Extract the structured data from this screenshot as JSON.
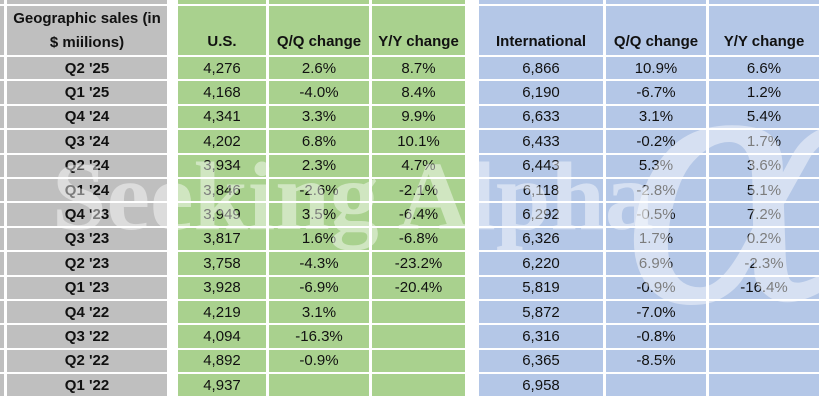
{
  "table": {
    "title_line1": "Geographic sales (in",
    "title_line2": "$ miilions)",
    "columns": [
      "U.S.",
      "Q/Q change",
      "Y/Y change",
      "International",
      "Q/Q change",
      "Y/Y change"
    ],
    "rows": [
      {
        "label": "Q2 '25",
        "us": "4,276",
        "us_qq": "2.6%",
        "us_yy": "8.7%",
        "intl": "6,866",
        "intl_qq": "10.9%",
        "intl_yy": "6.6%"
      },
      {
        "label": "Q1 '25",
        "us": "4,168",
        "us_qq": "-4.0%",
        "us_yy": "8.4%",
        "intl": "6,190",
        "intl_qq": "-6.7%",
        "intl_yy": "1.2%"
      },
      {
        "label": "Q4 '24",
        "us": "4,341",
        "us_qq": "3.3%",
        "us_yy": "9.9%",
        "intl": "6,633",
        "intl_qq": "3.1%",
        "intl_yy": "5.4%"
      },
      {
        "label": "Q3 '24",
        "us": "4,202",
        "us_qq": "6.8%",
        "us_yy": "10.1%",
        "intl": "6,433",
        "intl_qq": "-0.2%",
        "intl_yy": "1.7%"
      },
      {
        "label": "Q2 '24",
        "us": "3,934",
        "us_qq": "2.3%",
        "us_yy": "4.7%",
        "intl": "6,443",
        "intl_qq": "5.3%",
        "intl_yy": "3.6%"
      },
      {
        "label": "Q1 '24",
        "us": "3,846",
        "us_qq": "-2.6%",
        "us_yy": "-2.1%",
        "intl": "6,118",
        "intl_qq": "-2.8%",
        "intl_yy": "5.1%"
      },
      {
        "label": "Q4 '23",
        "us": "3,949",
        "us_qq": "3.5%",
        "us_yy": "-6.4%",
        "intl": "6,292",
        "intl_qq": "-0.5%",
        "intl_yy": "7.2%"
      },
      {
        "label": "Q3 '23",
        "us": "3,817",
        "us_qq": "1.6%",
        "us_yy": "-6.8%",
        "intl": "6,326",
        "intl_qq": "1.7%",
        "intl_yy": "0.2%"
      },
      {
        "label": "Q2 '23",
        "us": "3,758",
        "us_qq": "-4.3%",
        "us_yy": "-23.2%",
        "intl": "6,220",
        "intl_qq": "6.9%",
        "intl_yy": "-2.3%"
      },
      {
        "label": "Q1 '23",
        "us": "3,928",
        "us_qq": "-6.9%",
        "us_yy": "-20.4%",
        "intl": "5,819",
        "intl_qq": "-0.9%",
        "intl_yy": "-16.4%"
      },
      {
        "label": "Q4 '22",
        "us": "4,219",
        "us_qq": "3.1%",
        "us_yy": "",
        "intl": "5,872",
        "intl_qq": "-7.0%",
        "intl_yy": ""
      },
      {
        "label": "Q3 '22",
        "us": "4,094",
        "us_qq": "-16.3%",
        "us_yy": "",
        "intl": "6,316",
        "intl_qq": "-0.8%",
        "intl_yy": ""
      },
      {
        "label": "Q2 '22",
        "us": "4,892",
        "us_qq": "-0.9%",
        "us_yy": "",
        "intl": "6,365",
        "intl_qq": "-8.5%",
        "intl_yy": ""
      },
      {
        "label": "Q1 '22",
        "us": "4,937",
        "us_qq": "",
        "us_yy": "",
        "intl": "6,958",
        "intl_qq": "",
        "intl_yy": ""
      }
    ]
  },
  "watermark": {
    "text": "Seeking Alpha",
    "alpha_symbol": "α"
  },
  "colors": {
    "label_fill": "#bfbfbf",
    "us_fill": "#a9d18e",
    "intl_fill": "#b4c7e7",
    "gridline": "#ffffff",
    "text": "#111111"
  },
  "chart_data": {
    "type": "table",
    "title": "Geographic sales (in $ miilions)",
    "categories": [
      "Q2 '25",
      "Q1 '25",
      "Q4 '24",
      "Q3 '24",
      "Q2 '24",
      "Q1 '24",
      "Q4 '23",
      "Q3 '23",
      "Q2 '23",
      "Q1 '23",
      "Q4 '22",
      "Q3 '22",
      "Q2 '22",
      "Q1 '22"
    ],
    "series": [
      {
        "name": "U.S.",
        "values": [
          4276,
          4168,
          4341,
          4202,
          3934,
          3846,
          3949,
          3817,
          3758,
          3928,
          4219,
          4094,
          4892,
          4937
        ]
      },
      {
        "name": "U.S. Q/Q change",
        "values": [
          "2.6%",
          "-4.0%",
          "3.3%",
          "6.8%",
          "2.3%",
          "-2.6%",
          "3.5%",
          "1.6%",
          "-4.3%",
          "-6.9%",
          "3.1%",
          "-16.3%",
          "-0.9%",
          null
        ]
      },
      {
        "name": "U.S. Y/Y change",
        "values": [
          "8.7%",
          "8.4%",
          "9.9%",
          "10.1%",
          "4.7%",
          "-2.1%",
          "-6.4%",
          "-6.8%",
          "-23.2%",
          "-20.4%",
          null,
          null,
          null,
          null
        ]
      },
      {
        "name": "International",
        "values": [
          6866,
          6190,
          6633,
          6433,
          6443,
          6118,
          6292,
          6326,
          6220,
          5819,
          5872,
          6316,
          6365,
          6958
        ]
      },
      {
        "name": "International Q/Q change",
        "values": [
          "10.9%",
          "-6.7%",
          "3.1%",
          "-0.2%",
          "5.3%",
          "-2.8%",
          "-0.5%",
          "1.7%",
          "6.9%",
          "-0.9%",
          "-7.0%",
          "-0.8%",
          "-8.5%",
          null
        ]
      },
      {
        "name": "International Y/Y change",
        "values": [
          "6.6%",
          "1.2%",
          "5.4%",
          "1.7%",
          "3.6%",
          "5.1%",
          "7.2%",
          "0.2%",
          "-2.3%",
          "-16.4%",
          null,
          null,
          null,
          null
        ]
      }
    ]
  }
}
